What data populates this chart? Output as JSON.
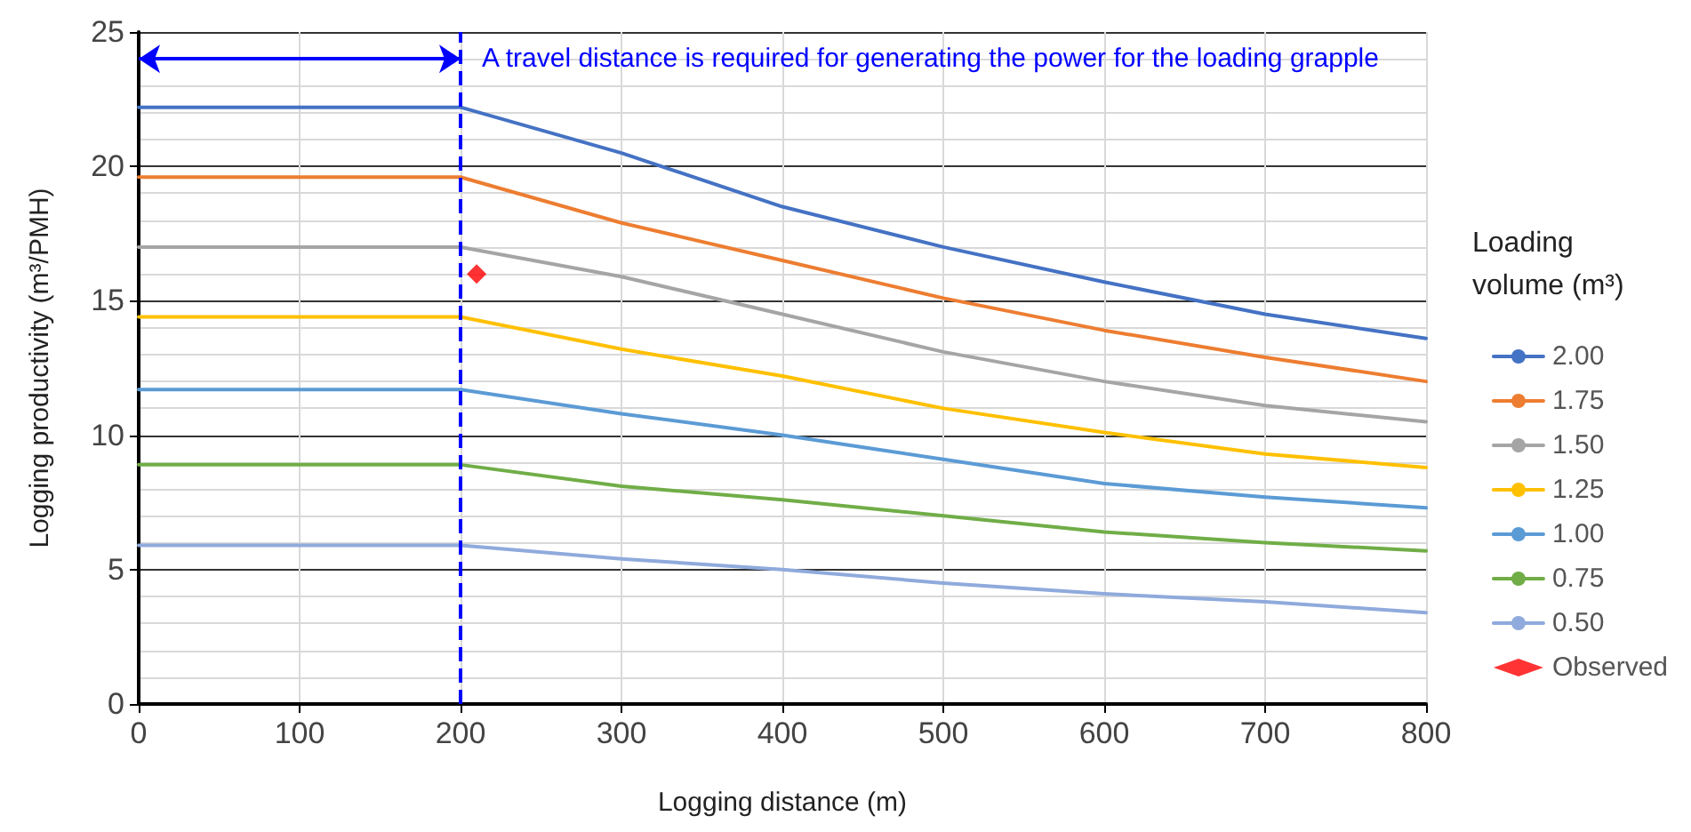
{
  "chart_data": {
    "type": "line",
    "xlabel": "Logging distance (m)",
    "ylabel": "Logging productivity (m³/PMH)",
    "legend_title": "Loading volume (m³)",
    "legend": "right",
    "grid": true,
    "marker": "none",
    "xlim": [
      0,
      800
    ],
    "xticks": [
      0,
      100,
      200,
      300,
      400,
      500,
      600,
      700,
      800
    ],
    "ylim": [
      0,
      25
    ],
    "yticks": [
      0,
      5,
      10,
      15,
      20,
      25
    ],
    "x": [
      0,
      200,
      300,
      400,
      500,
      600,
      700,
      800
    ],
    "series": [
      {
        "name": "2.00",
        "color": "#4472c4",
        "values": [
          22.2,
          22.2,
          20.5,
          18.5,
          17.0,
          15.7,
          14.5,
          13.6
        ]
      },
      {
        "name": "1.75",
        "color": "#ed7d31",
        "values": [
          19.6,
          19.6,
          17.9,
          16.5,
          15.1,
          13.9,
          12.9,
          12.0
        ]
      },
      {
        "name": "1.50",
        "color": "#a5a5a5",
        "values": [
          17.0,
          17.0,
          15.9,
          14.5,
          13.1,
          12.0,
          11.1,
          10.5
        ]
      },
      {
        "name": "1.25",
        "color": "#ffc000",
        "values": [
          14.4,
          14.4,
          13.2,
          12.2,
          11.0,
          10.1,
          9.3,
          8.8
        ]
      },
      {
        "name": "1.00",
        "color": "#5b9bd5",
        "values": [
          11.7,
          11.7,
          10.8,
          10.0,
          9.1,
          8.2,
          7.7,
          7.3
        ]
      },
      {
        "name": "0.75",
        "color": "#70ad47",
        "values": [
          8.9,
          8.9,
          8.1,
          7.6,
          7.0,
          6.4,
          6.0,
          5.7
        ]
      },
      {
        "name": "0.50",
        "color": "#8faadc",
        "values": [
          5.9,
          5.9,
          5.4,
          5.0,
          4.5,
          4.1,
          3.8,
          3.4
        ]
      },
      {
        "name": "Observed",
        "type": "scatter",
        "marker": "diamond",
        "color": "#ff0000",
        "x": [
          210
        ],
        "values": [
          16.0
        ]
      }
    ],
    "ref_lines": [
      {
        "axis": "x",
        "value": 200,
        "color": "#0000ff",
        "line_style": "dashed"
      }
    ],
    "annotations": [
      {
        "text": "A travel distance is required for generating the power for the loading grapple",
        "x": 200,
        "y": 24
      }
    ]
  }
}
